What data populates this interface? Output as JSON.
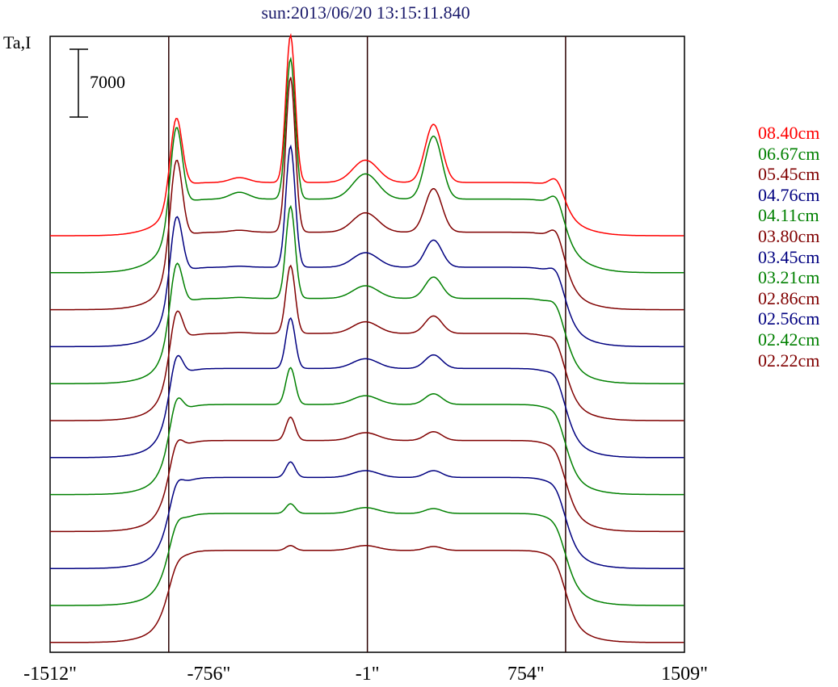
{
  "chart_data": {
    "type": "line",
    "title": "sun:2013/06/20 13:15:11.840",
    "ylabel": "Ta,I",
    "scale_bar_label": "7000",
    "xlim": [
      -1512,
      1509
    ],
    "x_ticks": [
      {
        "value": -1512,
        "label": "-1512\""
      },
      {
        "value": -756,
        "label": "-756\""
      },
      {
        "value": -1,
        "label": "-1\""
      },
      {
        "value": 754,
        "label": "754\""
      },
      {
        "value": 1509,
        "label": "1509\""
      }
    ],
    "vertical_lines": [
      -947,
      -1,
      943
    ],
    "grid": false,
    "legend_position": "right",
    "series": [
      {
        "name": "08.40cm",
        "color": "#ff0000"
      },
      {
        "name": "06.67cm",
        "color": "#008000"
      },
      {
        "name": "05.45cm",
        "color": "#800000"
      },
      {
        "name": "04.76cm",
        "color": "#000080"
      },
      {
        "name": "04.11cm",
        "color": "#008000"
      },
      {
        "name": "03.80cm",
        "color": "#800000"
      },
      {
        "name": "03.45cm",
        "color": "#000080"
      },
      {
        "name": "03.21cm",
        "color": "#008000"
      },
      {
        "name": "02.86cm",
        "color": "#800000"
      },
      {
        "name": "02.56cm",
        "color": "#000080"
      },
      {
        "name": "02.42cm",
        "color": "#008000"
      },
      {
        "name": "02.22cm",
        "color": "#800000"
      },
      {
        "name": "",
        "color": "#000080"
      },
      {
        "name": "",
        "color": "#008000"
      },
      {
        "name": "",
        "color": "#800000"
      }
    ],
    "profiles": [
      {
        "disk": 0.45,
        "flat": 0.1,
        "peaks": [
          0.78,
          1.52,
          0.23,
          0.6,
          0.05,
          0.12
        ]
      },
      {
        "disk": 0.62,
        "flat": 0.14,
        "peaks": [
          0.9,
          1.45,
          0.26,
          0.65,
          0.07,
          0.14
        ]
      },
      {
        "disk": 0.7,
        "flat": 0.1,
        "peaks": [
          0.92,
          1.6,
          0.2,
          0.45,
          0.02,
          0.14
        ]
      },
      {
        "disk": 0.72,
        "flat": 0.1,
        "peaks": [
          0.7,
          1.25,
          0.15,
          0.28,
          0.01,
          0.1
        ]
      },
      {
        "disk": 0.78,
        "flat": 0.1,
        "peaks": [
          0.55,
          0.95,
          0.13,
          0.22,
          0.01,
          0.08
        ]
      },
      {
        "disk": 0.8,
        "flat": 0.1,
        "peaks": [
          0.42,
          0.7,
          0.12,
          0.18,
          0.01,
          0.07
        ]
      },
      {
        "disk": 0.82,
        "flat": 0.1,
        "peaks": [
          0.32,
          0.52,
          0.1,
          0.14,
          0.0,
          0.06
        ]
      },
      {
        "disk": 0.83,
        "flat": 0.1,
        "peaks": [
          0.25,
          0.38,
          0.09,
          0.11,
          0.0,
          0.05
        ]
      },
      {
        "disk": 0.84,
        "flat": 0.1,
        "peaks": [
          0.18,
          0.24,
          0.08,
          0.09,
          0.0,
          0.04
        ]
      },
      {
        "disk": 0.84,
        "flat": 0.1,
        "peaks": [
          0.14,
          0.16,
          0.07,
          0.07,
          0.0,
          0.04
        ]
      },
      {
        "disk": 0.85,
        "flat": 0.1,
        "peaks": [
          0.1,
          0.1,
          0.06,
          0.05,
          0.0,
          0.03
        ]
      },
      {
        "disk": 0.85,
        "flat": 0.1,
        "peaks": [
          0.06,
          0.05,
          0.05,
          0.04,
          0.0,
          0.03
        ]
      }
    ]
  }
}
